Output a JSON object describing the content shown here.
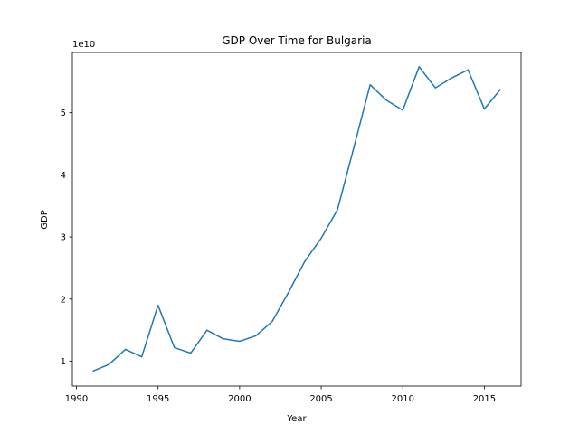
{
  "chart_data": {
    "type": "line",
    "title": "GDP Over Time for Bulgaria",
    "xlabel": "Year",
    "ylabel": "GDP",
    "offset_text": "1e10",
    "xlim": [
      1989.75,
      2017.25
    ],
    "ylim": [
      6000000000.0,
      59700000000.0
    ],
    "x_ticks": [
      1990,
      1995,
      2000,
      2005,
      2010,
      2015
    ],
    "x_tick_labels": [
      "1990",
      "1995",
      "2000",
      "2005",
      "2010",
      "2015"
    ],
    "y_ticks": [
      10000000000.0,
      20000000000.0,
      30000000000.0,
      40000000000.0,
      50000000000.0
    ],
    "y_tick_labels": [
      "1",
      "2",
      "3",
      "4",
      "5"
    ],
    "grid": false,
    "color": "#1f77b4",
    "series": [
      {
        "x": [
          1991,
          1992,
          1993,
          1994,
          1995,
          1996,
          1997,
          1998,
          1999,
          2000,
          2001,
          2002,
          2003,
          2004,
          2005,
          2006,
          2007,
          2008,
          2009,
          2010,
          2011,
          2012,
          2013,
          2014,
          2015,
          2016
        ],
        "values": [
          8400000000.0,
          9500000000.0,
          11900000000.0,
          10700000000.0,
          19000000000.0,
          12200000000.0,
          11300000000.0,
          15000000000.0,
          13600000000.0,
          13200000000.0,
          14100000000.0,
          16400000000.0,
          21100000000.0,
          26100000000.0,
          29800000000.0,
          34400000000.0,
          44400000000.0,
          54500000000.0,
          52000000000.0,
          50400000000.0,
          57400000000.0,
          54000000000.0,
          55600000000.0,
          56900000000.0,
          50600000000.0,
          53800000000.0
        ]
      }
    ]
  }
}
